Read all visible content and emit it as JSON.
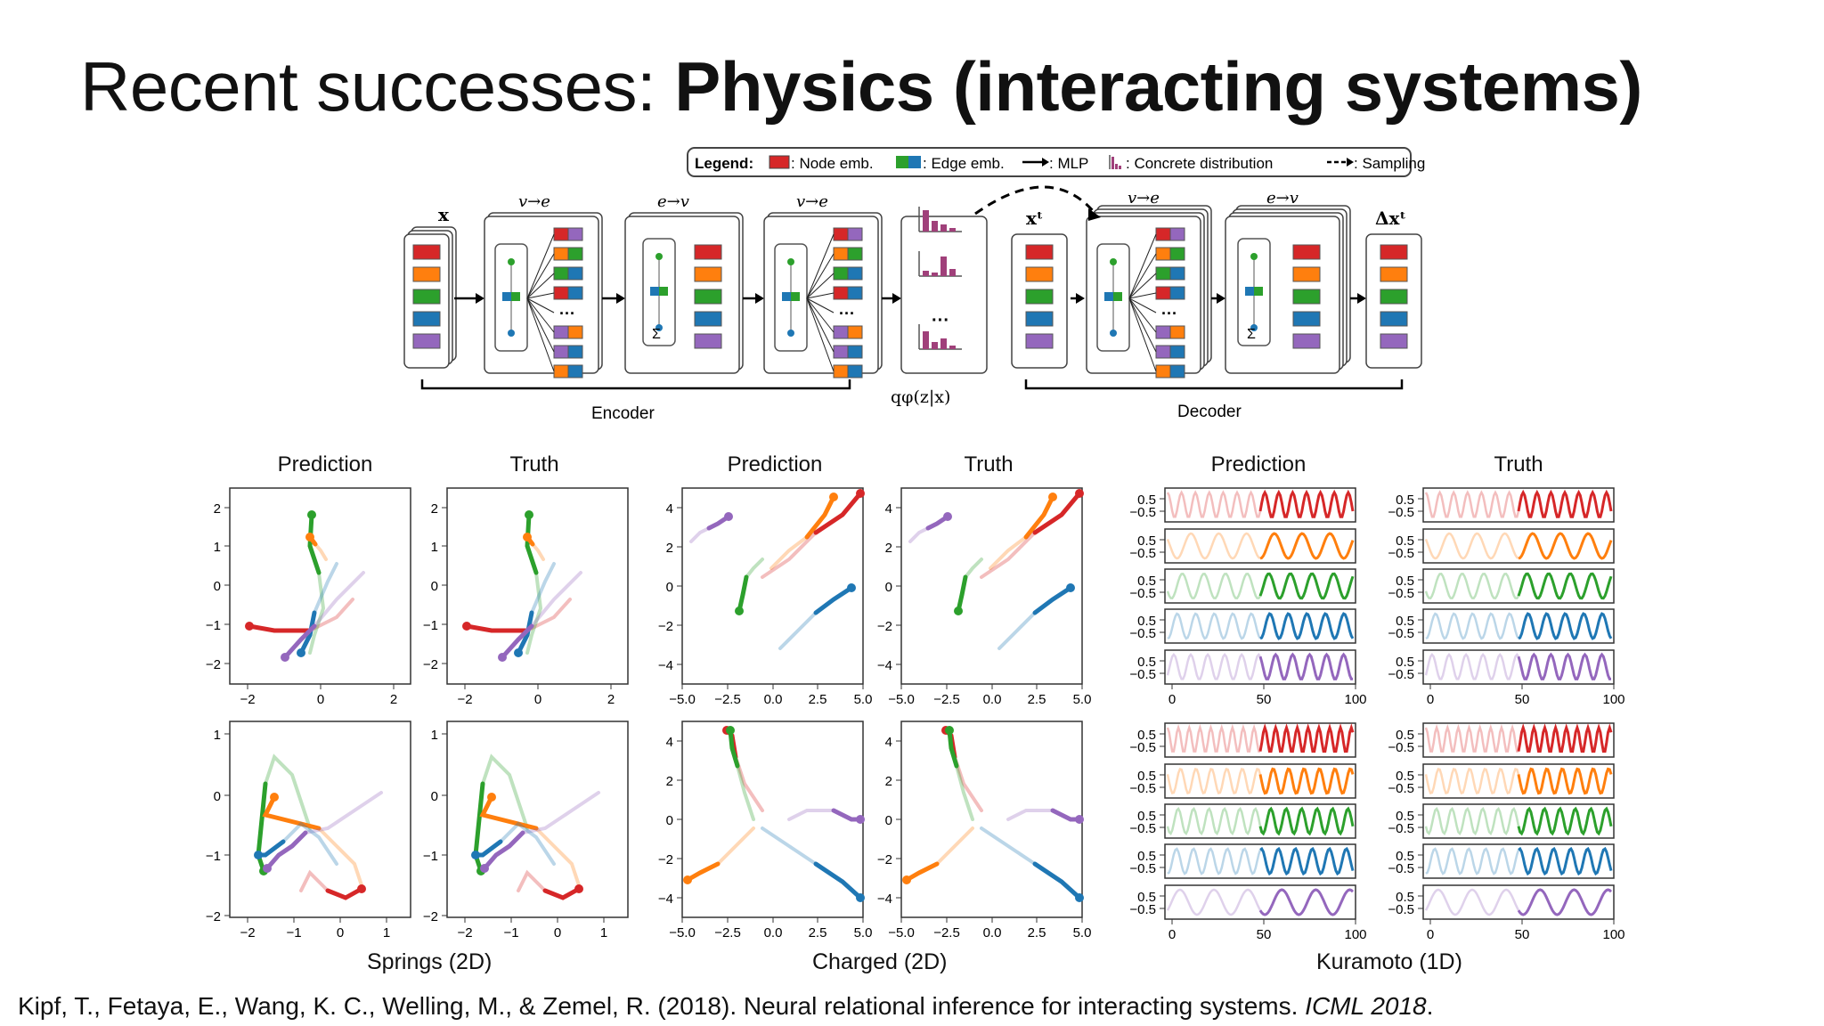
{
  "slide": {
    "title_light": "Recent successes: ",
    "title_bold": "Physics (interacting systems)",
    "reference_main": "Kipf, T., Fetaya, E., Wang, K. C., Welling, M., & Zemel, R. (2018). Neural relational inference for interacting systems. ",
    "reference_venue": "ICML 2018",
    "reference_end": "."
  },
  "architecture": {
    "legend_title": "Legend:",
    "legend_node": ": Node emb.",
    "legend_edge": ": Edge emb.",
    "legend_mlp": ": MLP",
    "legend_concrete": ": Concrete distribution",
    "legend_sampling": ": Sampling",
    "x": "x",
    "v_to_e": "v→e",
    "e_to_v": "e→v",
    "xt": "xᵗ",
    "delta_xt": "Δxᵗ",
    "sum": "Σ",
    "dots": "···",
    "q_label": "qφ(z|x)",
    "encoder": "Encoder",
    "decoder": "Decoder",
    "node_colors": [
      "#d62728",
      "#ff7f0e",
      "#2ca02c",
      "#1f77b4",
      "#9467bd"
    ]
  },
  "panels": {
    "prediction": "Prediction",
    "truth": "Truth",
    "springs_caption": "Springs (2D)",
    "charged_caption": "Charged (2D)",
    "kuramoto_caption": "Kuramoto (1D)",
    "springs_top_yticks": [
      "2",
      "1",
      "0",
      "−1",
      "−2"
    ],
    "springs_top_xticks": [
      "−2",
      "0",
      "2"
    ],
    "springs_bot_yticks": [
      "1",
      "0",
      "−1",
      "−2"
    ],
    "springs_bot_xticks": [
      "−2",
      "−1",
      "0",
      "1"
    ],
    "charged_yticks": [
      "4",
      "2",
      "0",
      "−2",
      "−4"
    ],
    "charged_xticks": [
      "−5.0",
      "−2.5",
      "0.0",
      "2.5",
      "5.0"
    ],
    "kuramoto_yticks": [
      "0.5",
      "−0.5"
    ],
    "kuramoto_xticks": [
      "0",
      "50",
      "100"
    ]
  },
  "chart_data": [
    {
      "type": "line",
      "title": "Kuramoto (1D)",
      "x_range": [
        0,
        100
      ],
      "y_ticks": [
        0.5,
        -0.5
      ],
      "series": [
        {
          "color": "#d62728"
        },
        {
          "color": "#1f77b4"
        },
        {
          "color": "#2ca02c"
        },
        {
          "color": "#9467bd"
        },
        {
          "color": "#ff7f0e"
        }
      ]
    }
  ]
}
